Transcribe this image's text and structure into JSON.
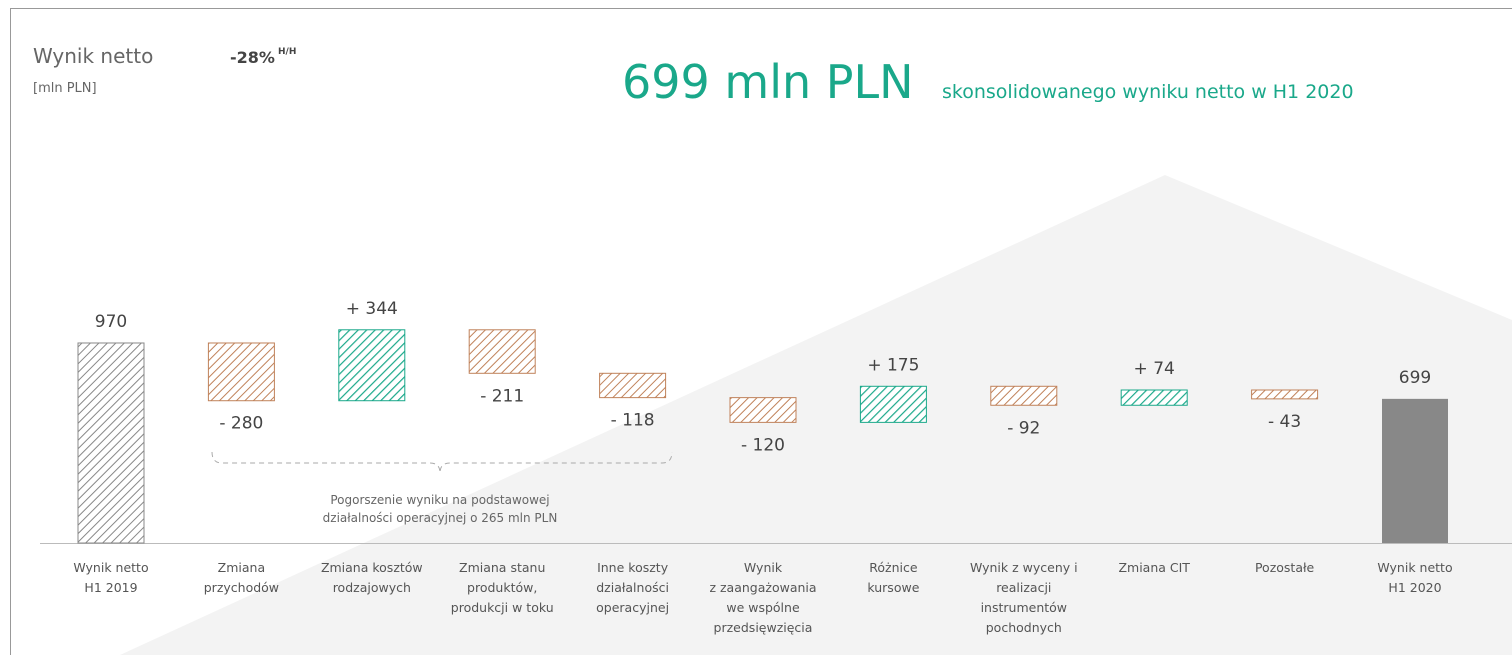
{
  "chart_data": {
    "type": "waterfall",
    "title": "Wynik netto",
    "unit": "[mln PLN]",
    "change": "-28%",
    "change_suffix": "H/H",
    "headline": "699 mln PLN",
    "headline_text": "skonsolidowanego wyniku netto w H1 2020",
    "categories": [
      [
        "Wynik netto",
        "H1 2019"
      ],
      [
        "Zmiana",
        "przychodów"
      ],
      [
        "Zmiana kosztów",
        "rodzajowych"
      ],
      [
        "Zmiana stanu",
        "produktów,",
        "produkcji w toku"
      ],
      [
        "Inne koszty",
        "działalności",
        "operacyjnej"
      ],
      [
        "Wynik",
        "z zaangażowania",
        "we wspólne",
        "przedsięwzięcia"
      ],
      [
        "Różnice",
        "kursowe"
      ],
      [
        "Wynik z wyceny i",
        "realizacji",
        "instrumentów",
        "pochodnych"
      ],
      [
        "Zmiana CIT"
      ],
      [
        "Pozostałe"
      ],
      [
        "Wynik netto",
        "H1 2020"
      ]
    ],
    "values": [
      970,
      -280,
      344,
      -211,
      -118,
      -120,
      175,
      -92,
      74,
      -43,
      699
    ],
    "value_labels": [
      "970",
      "- 280",
      "+ 344",
      "- 211",
      "- 118",
      "- 120",
      "+ 175",
      "- 92",
      "+ 74",
      "- 43",
      "699"
    ],
    "annotation": [
      "Pogorszenie wyniku na podstawowej",
      "działalności operacyjnej o 265 mln PLN"
    ],
    "colors": {
      "increase": "#1aa88a",
      "decrease": "#c0825a",
      "total": "#888888"
    }
  }
}
